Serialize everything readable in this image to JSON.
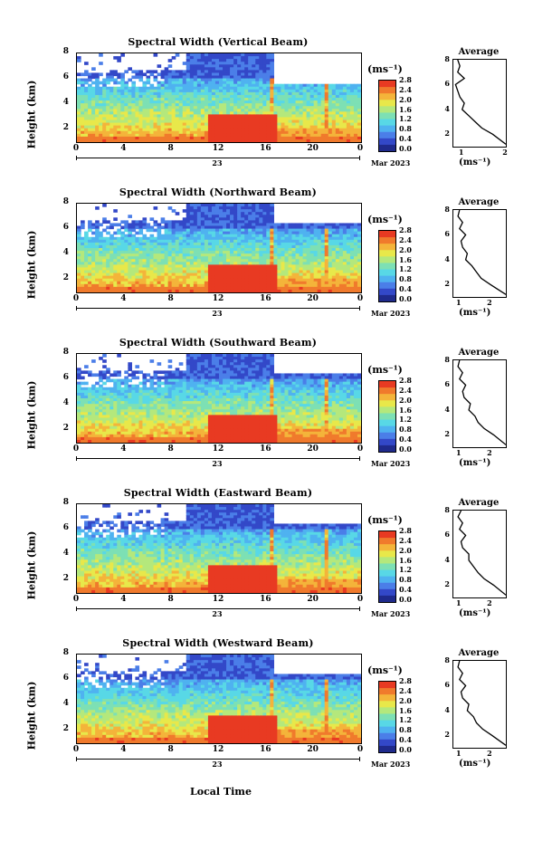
{
  "x_axis_label": "Local Time",
  "height_label": "Height (km)",
  "unit_label": "(ms⁻¹)",
  "average_title": "Average",
  "average_unit": "(ms⁻¹)",
  "day_label": "23",
  "month_label": "Mar 2023",
  "colors": [
    "#1f2a8c",
    "#3348c8",
    "#4b7ee8",
    "#4fb2f0",
    "#58d8e6",
    "#7de0b4",
    "#b4e87c",
    "#e8e84a",
    "#f4b43a",
    "#f07a2c",
    "#e83a22"
  ],
  "panels": [
    {
      "title": "Spectral Width (Vertical Beam)",
      "colorbar_ticks": [
        "2.8",
        "2.4",
        "2.0",
        "1.6",
        "1.2",
        "0.8",
        "0.4",
        "0.0"
      ],
      "avg_x_ticks": [
        "1",
        "2"
      ]
    },
    {
      "title": "Spectral Width (Northward Beam)",
      "colorbar_ticks": [
        "2.8",
        "2.4",
        "2.0",
        "1.6",
        "1.2",
        "0.8",
        "0.4",
        "0.0"
      ],
      "avg_x_ticks": [
        "1",
        "2"
      ]
    },
    {
      "title": "Spectral Width (Southward Beam)",
      "colorbar_ticks": [
        "2.8",
        "2.4",
        "2.0",
        "1.6",
        "1.2",
        "0.8",
        "0.4",
        "0.0"
      ],
      "avg_x_ticks": [
        "1",
        "2"
      ]
    },
    {
      "title": "Spectral Width (Eastward Beam)",
      "colorbar_ticks": [
        "2.8",
        "2.4",
        "2.0",
        "1.6",
        "1.2",
        "0.8",
        "0.4",
        "0.0"
      ],
      "avg_x_ticks": [
        "1",
        "2"
      ]
    },
    {
      "title": "Spectral Width (Westward Beam)",
      "colorbar_ticks": [
        "2.8",
        "2.4",
        "2.0",
        "1.6",
        "1.2",
        "0.8",
        "0.4",
        "0.0"
      ],
      "avg_x_ticks": [
        "1",
        "2"
      ]
    }
  ],
  "chart_data": [
    {
      "type": "heatmap",
      "title": "Spectral Width (Vertical Beam)",
      "xlabel": "Local Time",
      "ylabel": "Height (km)",
      "x_ticks": [
        "0",
        "4",
        "8",
        "12",
        "16",
        "20",
        "0"
      ],
      "y_ticks": [
        "2",
        "4",
        "6",
        "8"
      ],
      "ylim": [
        1,
        8
      ],
      "xlim": [
        0,
        24
      ],
      "colorbar": {
        "label": "(ms⁻¹)",
        "range": [
          0.0,
          2.8
        ]
      },
      "average_profile": {
        "xlim": [
          0.8,
          2.0
        ],
        "x_ticks": [
          "1",
          "2"
        ],
        "y_ticks": [
          "2",
          "4",
          "6",
          "8"
        ],
        "height": [
          1.2,
          2.0,
          2.5,
          3.0,
          3.5,
          4.0,
          4.5,
          5.0,
          5.5,
          6.0,
          6.5,
          7.0,
          7.5,
          8.0
        ],
        "width": [
          2.0,
          1.7,
          1.45,
          1.3,
          1.15,
          1.0,
          1.05,
          0.95,
          0.9,
          0.85,
          1.05,
          0.9,
          0.95,
          0.9
        ]
      }
    },
    {
      "type": "heatmap",
      "title": "Spectral Width (Northward Beam)",
      "xlabel": "Local Time",
      "ylabel": "Height (km)",
      "x_ticks": [
        "0",
        "4",
        "8",
        "12",
        "16",
        "20",
        "0"
      ],
      "y_ticks": [
        "2",
        "4",
        "6",
        "8"
      ],
      "ylim": [
        1,
        8
      ],
      "xlim": [
        0,
        24
      ],
      "colorbar": {
        "label": "(ms⁻¹)",
        "range": [
          0.0,
          2.8
        ]
      },
      "average_profile": {
        "xlim": [
          0.8,
          2.5
        ],
        "x_ticks": [
          "1",
          "2"
        ],
        "y_ticks": [
          "2",
          "4",
          "6",
          "8"
        ],
        "height": [
          1.2,
          2.0,
          2.5,
          3.0,
          3.5,
          4.0,
          4.5,
          5.0,
          5.5,
          6.0,
          6.5,
          7.0,
          7.5,
          8.0
        ],
        "width": [
          2.5,
          2.0,
          1.7,
          1.55,
          1.4,
          1.2,
          1.25,
          1.1,
          1.05,
          1.2,
          1.0,
          1.1,
          0.95,
          1.0
        ]
      }
    },
    {
      "type": "heatmap",
      "title": "Spectral Width (Southward Beam)",
      "xlabel": "Local Time",
      "ylabel": "Height (km)",
      "x_ticks": [
        "0",
        "4",
        "8",
        "12",
        "16",
        "20",
        "0"
      ],
      "y_ticks": [
        "2",
        "4",
        "6",
        "8"
      ],
      "ylim": [
        1,
        8
      ],
      "xlim": [
        0,
        24
      ],
      "colorbar": {
        "label": "(ms⁻¹)",
        "range": [
          0.0,
          2.8
        ]
      },
      "average_profile": {
        "xlim": [
          0.8,
          2.5
        ],
        "x_ticks": [
          "1",
          "2"
        ],
        "y_ticks": [
          "2",
          "4",
          "6",
          "8"
        ],
        "height": [
          1.2,
          2.0,
          2.5,
          3.0,
          3.5,
          4.0,
          4.5,
          5.0,
          5.5,
          6.0,
          6.5,
          7.0,
          7.5,
          8.0
        ],
        "width": [
          2.5,
          2.1,
          1.8,
          1.6,
          1.5,
          1.3,
          1.35,
          1.15,
          1.1,
          1.2,
          1.0,
          1.1,
          0.95,
          1.0
        ]
      }
    },
    {
      "type": "heatmap",
      "title": "Spectral Width (Eastward Beam)",
      "xlabel": "Local Time",
      "ylabel": "Height (km)",
      "x_ticks": [
        "0",
        "4",
        "8",
        "12",
        "16",
        "20",
        "0"
      ],
      "y_ticks": [
        "2",
        "4",
        "6",
        "8"
      ],
      "ylim": [
        1,
        8
      ],
      "xlim": [
        0,
        24
      ],
      "colorbar": {
        "label": "(ms⁻¹)",
        "range": [
          0.0,
          2.8
        ]
      },
      "average_profile": {
        "xlim": [
          0.8,
          2.5
        ],
        "x_ticks": [
          "1",
          "2"
        ],
        "y_ticks": [
          "2",
          "4",
          "6",
          "8"
        ],
        "height": [
          1.2,
          2.0,
          2.5,
          3.0,
          3.5,
          4.0,
          4.5,
          5.0,
          5.5,
          6.0,
          6.5,
          7.0,
          7.5,
          8.0
        ],
        "width": [
          2.5,
          2.1,
          1.8,
          1.6,
          1.45,
          1.3,
          1.3,
          1.1,
          1.05,
          1.2,
          1.0,
          1.1,
          0.95,
          1.05
        ]
      }
    },
    {
      "type": "heatmap",
      "title": "Spectral Width (Westward Beam)",
      "xlabel": "Local Time",
      "ylabel": "Height (km)",
      "x_ticks": [
        "0",
        "4",
        "8",
        "12",
        "16",
        "20",
        "0"
      ],
      "y_ticks": [
        "2",
        "4",
        "6",
        "8"
      ],
      "ylim": [
        1,
        8
      ],
      "xlim": [
        0,
        24
      ],
      "colorbar": {
        "label": "(ms⁻¹)",
        "range": [
          0.0,
          2.8
        ]
      },
      "average_profile": {
        "xlim": [
          0.8,
          2.5
        ],
        "x_ticks": [
          "1",
          "2"
        ],
        "y_ticks": [
          "2",
          "4",
          "6",
          "8"
        ],
        "height": [
          1.2,
          2.0,
          2.5,
          3.0,
          3.5,
          4.0,
          4.5,
          5.0,
          5.5,
          6.0,
          6.5,
          7.0,
          7.5,
          8.0
        ],
        "width": [
          2.5,
          2.05,
          1.75,
          1.55,
          1.45,
          1.25,
          1.3,
          1.1,
          1.05,
          1.2,
          1.0,
          1.1,
          0.95,
          1.0
        ]
      }
    }
  ]
}
